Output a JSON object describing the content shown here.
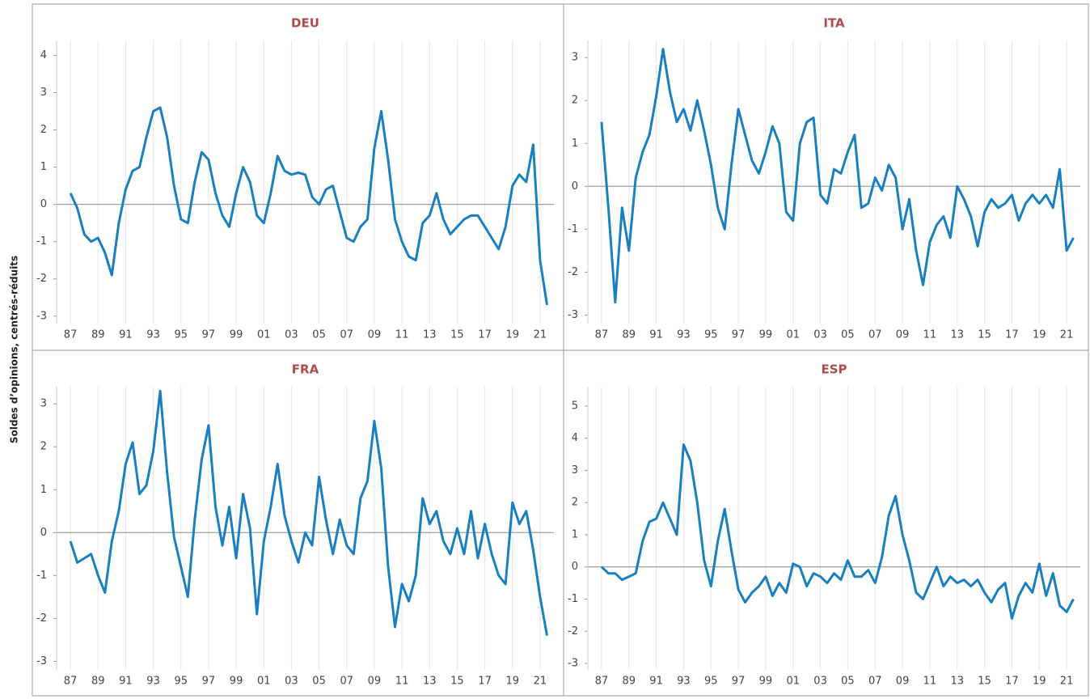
{
  "ylabel": "Soldes d’opinions, centrés-réduits",
  "chart_data": [
    {
      "type": "line",
      "title": "DEU",
      "color": "#1a7fc1",
      "grid": true,
      "x": [
        1987,
        1987.5,
        1988,
        1988.5,
        1989,
        1989.5,
        1990,
        1990.5,
        1991,
        1991.5,
        1992,
        1992.5,
        1993,
        1993.5,
        1994,
        1994.5,
        1995,
        1995.5,
        1996,
        1996.5,
        1997,
        1997.5,
        1998,
        1998.5,
        1999,
        1999.5,
        2000,
        2000.5,
        2001,
        2001.5,
        2002,
        2002.5,
        2003,
        2003.5,
        2004,
        2004.5,
        2005,
        2005.5,
        2006,
        2006.5,
        2007,
        2007.5,
        2008,
        2008.5,
        2009,
        2009.5,
        2010,
        2010.5,
        2011,
        2011.5,
        2012,
        2012.5,
        2013,
        2013.5,
        2014,
        2014.5,
        2015,
        2015.5,
        2016,
        2016.5,
        2017,
        2017.5,
        2018,
        2018.5,
        2019,
        2019.5,
        2020,
        2020.5,
        2021,
        2021.5
      ],
      "values": [
        0.3,
        -0.1,
        -0.8,
        -1.0,
        -0.9,
        -1.3,
        -1.9,
        -0.5,
        0.4,
        0.9,
        1.0,
        1.8,
        2.5,
        2.6,
        1.8,
        0.5,
        -0.4,
        -0.5,
        0.6,
        1.4,
        1.2,
        0.3,
        -0.3,
        -0.6,
        0.3,
        1.0,
        0.6,
        -0.3,
        -0.5,
        0.3,
        1.3,
        0.9,
        0.8,
        0.85,
        0.8,
        0.2,
        0.0,
        0.4,
        0.5,
        -0.2,
        -0.9,
        -1.0,
        -0.6,
        -0.4,
        1.5,
        2.5,
        1.2,
        -0.4,
        -1.0,
        -1.4,
        -1.5,
        -0.5,
        -0.3,
        0.3,
        -0.4,
        -0.8,
        -0.6,
        -0.4,
        -0.3,
        -0.3,
        -0.6,
        -0.9,
        -1.2,
        -0.6,
        0.5,
        0.8,
        0.6,
        1.6,
        -1.5,
        -2.7
      ],
      "xlim": [
        1986,
        2022
      ],
      "xticks": [
        {
          "value": 1987,
          "label": "87"
        },
        {
          "value": 1989,
          "label": "89"
        },
        {
          "value": 1991,
          "label": "91"
        },
        {
          "value": 1993,
          "label": "93"
        },
        {
          "value": 1995,
          "label": "95"
        },
        {
          "value": 1997,
          "label": "97"
        },
        {
          "value": 1999,
          "label": "99"
        },
        {
          "value": 2001,
          "label": "01"
        },
        {
          "value": 2003,
          "label": "03"
        },
        {
          "value": 2005,
          "label": "05"
        },
        {
          "value": 2007,
          "label": "07"
        },
        {
          "value": 2009,
          "label": "09"
        },
        {
          "value": 2011,
          "label": "11"
        },
        {
          "value": 2013,
          "label": "13"
        },
        {
          "value": 2015,
          "label": "15"
        },
        {
          "value": 2017,
          "label": "17"
        },
        {
          "value": 2019,
          "label": "19"
        },
        {
          "value": 2021,
          "label": "21"
        }
      ],
      "ylim": [
        -3.2,
        4.4
      ],
      "yticks": [
        -3,
        -2,
        -1,
        0,
        1,
        2,
        3,
        4
      ]
    },
    {
      "type": "line",
      "title": "ITA",
      "color": "#1a7fc1",
      "grid": true,
      "x": [
        1987,
        1987.5,
        1988,
        1988.5,
        1989,
        1989.5,
        1990,
        1990.5,
        1991,
        1991.5,
        1992,
        1992.5,
        1993,
        1993.5,
        1994,
        1994.5,
        1995,
        1995.5,
        1996,
        1996.5,
        1997,
        1997.5,
        1998,
        1998.5,
        1999,
        1999.5,
        2000,
        2000.5,
        2001,
        2001.5,
        2002,
        2002.5,
        2003,
        2003.5,
        2004,
        2004.5,
        2005,
        2005.5,
        2006,
        2006.5,
        2007,
        2007.5,
        2008,
        2008.5,
        2009,
        2009.5,
        2010,
        2010.5,
        2011,
        2011.5,
        2012,
        2012.5,
        2013,
        2013.5,
        2014,
        2014.5,
        2015,
        2015.5,
        2016,
        2016.5,
        2017,
        2017.5,
        2018,
        2018.5,
        2019,
        2019.5,
        2020,
        2020.5,
        2021,
        2021.5
      ],
      "values": [
        1.5,
        -0.5,
        -2.7,
        -0.5,
        -1.5,
        0.2,
        0.8,
        1.2,
        2.1,
        3.2,
        2.2,
        1.5,
        1.8,
        1.3,
        2.0,
        1.3,
        0.5,
        -0.5,
        -1.0,
        0.5,
        1.8,
        1.2,
        0.6,
        0.3,
        0.8,
        1.4,
        1.0,
        -0.6,
        -0.8,
        1.0,
        1.5,
        1.6,
        -0.2,
        -0.4,
        0.4,
        0.3,
        0.8,
        1.2,
        -0.5,
        -0.4,
        0.2,
        -0.1,
        0.5,
        0.2,
        -1.0,
        -0.3,
        -1.5,
        -2.3,
        -1.3,
        -0.9,
        -0.7,
        -1.2,
        0.0,
        -0.3,
        -0.7,
        -1.4,
        -0.6,
        -0.3,
        -0.5,
        -0.4,
        -0.2,
        -0.8,
        -0.4,
        -0.2,
        -0.4,
        -0.2,
        -0.5,
        0.4,
        -1.5,
        -1.2
      ],
      "xlim": [
        1986,
        2022
      ],
      "xticks": [
        {
          "value": 1987,
          "label": "87"
        },
        {
          "value": 1989,
          "label": "89"
        },
        {
          "value": 1991,
          "label": "91"
        },
        {
          "value": 1993,
          "label": "93"
        },
        {
          "value": 1995,
          "label": "95"
        },
        {
          "value": 1997,
          "label": "97"
        },
        {
          "value": 1999,
          "label": "99"
        },
        {
          "value": 2001,
          "label": "01"
        },
        {
          "value": 2003,
          "label": "03"
        },
        {
          "value": 2005,
          "label": "05"
        },
        {
          "value": 2007,
          "label": "07"
        },
        {
          "value": 2009,
          "label": "09"
        },
        {
          "value": 2011,
          "label": "11"
        },
        {
          "value": 2013,
          "label": "13"
        },
        {
          "value": 2015,
          "label": "15"
        },
        {
          "value": 2017,
          "label": "17"
        },
        {
          "value": 2019,
          "label": "19"
        },
        {
          "value": 2021,
          "label": "21"
        }
      ],
      "ylim": [
        -3.2,
        3.4
      ],
      "yticks": [
        -3,
        -2,
        -1,
        0,
        1,
        2,
        3
      ]
    },
    {
      "type": "line",
      "title": "FRA",
      "color": "#1a7fc1",
      "grid": true,
      "x": [
        1987,
        1987.5,
        1988,
        1988.5,
        1989,
        1989.5,
        1990,
        1990.5,
        1991,
        1991.5,
        1992,
        1992.5,
        1993,
        1993.5,
        1994,
        1994.5,
        1995,
        1995.5,
        1996,
        1996.5,
        1997,
        1997.5,
        1998,
        1998.5,
        1999,
        1999.5,
        2000,
        2000.5,
        2001,
        2001.5,
        2002,
        2002.5,
        2003,
        2003.5,
        2004,
        2004.5,
        2005,
        2005.5,
        2006,
        2006.5,
        2007,
        2007.5,
        2008,
        2008.5,
        2009,
        2009.5,
        2010,
        2010.5,
        2011,
        2011.5,
        2012,
        2012.5,
        2013,
        2013.5,
        2014,
        2014.5,
        2015,
        2015.5,
        2016,
        2016.5,
        2017,
        2017.5,
        2018,
        2018.5,
        2019,
        2019.5,
        2020,
        2020.5,
        2021,
        2021.5
      ],
      "values": [
        -0.2,
        -0.7,
        -0.6,
        -0.5,
        -1.0,
        -1.4,
        -0.2,
        0.5,
        1.6,
        2.1,
        0.9,
        1.1,
        1.9,
        3.3,
        1.4,
        -0.1,
        -0.8,
        -1.5,
        0.3,
        1.7,
        2.5,
        0.6,
        -0.3,
        0.6,
        -0.6,
        0.9,
        0.1,
        -1.9,
        -0.2,
        0.6,
        1.6,
        0.4,
        -0.2,
        -0.7,
        0.0,
        -0.3,
        1.3,
        0.3,
        -0.5,
        0.3,
        -0.3,
        -0.5,
        0.8,
        1.2,
        2.6,
        1.5,
        -0.8,
        -2.2,
        -1.2,
        -1.6,
        -1.0,
        0.8,
        0.2,
        0.5,
        -0.2,
        -0.5,
        0.1,
        -0.5,
        0.5,
        -0.6,
        0.2,
        -0.5,
        -1.0,
        -1.2,
        0.7,
        0.2,
        0.5,
        -0.4,
        -1.5,
        -2.4
      ],
      "xlim": [
        1986,
        2022
      ],
      "xticks": [
        {
          "value": 1987,
          "label": "87"
        },
        {
          "value": 1989,
          "label": "89"
        },
        {
          "value": 1991,
          "label": "91"
        },
        {
          "value": 1993,
          "label": "93"
        },
        {
          "value": 1995,
          "label": "95"
        },
        {
          "value": 1997,
          "label": "97"
        },
        {
          "value": 1999,
          "label": "99"
        },
        {
          "value": 2001,
          "label": "01"
        },
        {
          "value": 2003,
          "label": "03"
        },
        {
          "value": 2005,
          "label": "05"
        },
        {
          "value": 2007,
          "label": "07"
        },
        {
          "value": 2009,
          "label": "09"
        },
        {
          "value": 2011,
          "label": "11"
        },
        {
          "value": 2013,
          "label": "13"
        },
        {
          "value": 2015,
          "label": "15"
        },
        {
          "value": 2017,
          "label": "17"
        },
        {
          "value": 2019,
          "label": "19"
        },
        {
          "value": 2021,
          "label": "21"
        }
      ],
      "ylim": [
        -3.2,
        3.4
      ],
      "yticks": [
        -3,
        -2,
        -1,
        0,
        1,
        2,
        3
      ]
    },
    {
      "type": "line",
      "title": "ESP",
      "color": "#1a7fc1",
      "grid": true,
      "x": [
        1987,
        1987.5,
        1988,
        1988.5,
        1989,
        1989.5,
        1990,
        1990.5,
        1991,
        1991.5,
        1992,
        1992.5,
        1993,
        1993.5,
        1994,
        1994.5,
        1995,
        1995.5,
        1996,
        1996.5,
        1997,
        1997.5,
        1998,
        1998.5,
        1999,
        1999.5,
        2000,
        2000.5,
        2001,
        2001.5,
        2002,
        2002.5,
        2003,
        2003.5,
        2004,
        2004.5,
        2005,
        2005.5,
        2006,
        2006.5,
        2007,
        2007.5,
        2008,
        2008.5,
        2009,
        2009.5,
        2010,
        2010.5,
        2011,
        2011.5,
        2012,
        2012.5,
        2013,
        2013.5,
        2014,
        2014.5,
        2015,
        2015.5,
        2016,
        2016.5,
        2017,
        2017.5,
        2018,
        2018.5,
        2019,
        2019.5,
        2020,
        2020.5,
        2021,
        2021.5
      ],
      "values": [
        0.0,
        -0.2,
        -0.2,
        -0.4,
        -0.3,
        -0.2,
        0.8,
        1.4,
        1.5,
        2.0,
        1.5,
        1.0,
        3.8,
        3.3,
        2.0,
        0.2,
        -0.6,
        0.8,
        1.8,
        0.5,
        -0.7,
        -1.1,
        -0.8,
        -0.6,
        -0.3,
        -0.9,
        -0.5,
        -0.8,
        0.1,
        0.0,
        -0.6,
        -0.2,
        -0.3,
        -0.5,
        -0.2,
        -0.4,
        0.2,
        -0.3,
        -0.3,
        -0.1,
        -0.5,
        0.3,
        1.6,
        2.2,
        1.0,
        0.2,
        -0.8,
        -1.0,
        -0.5,
        0.0,
        -0.6,
        -0.3,
        -0.5,
        -0.4,
        -0.6,
        -0.4,
        -0.8,
        -1.1,
        -0.7,
        -0.5,
        -1.6,
        -0.9,
        -0.5,
        -0.8,
        0.1,
        -0.9,
        -0.2,
        -1.2,
        -1.4,
        -1.0
      ],
      "xlim": [
        1986,
        2022
      ],
      "xticks": [
        {
          "value": 1987,
          "label": "87"
        },
        {
          "value": 1989,
          "label": "89"
        },
        {
          "value": 1991,
          "label": "91"
        },
        {
          "value": 1993,
          "label": "93"
        },
        {
          "value": 1995,
          "label": "95"
        },
        {
          "value": 1997,
          "label": "97"
        },
        {
          "value": 1999,
          "label": "99"
        },
        {
          "value": 2001,
          "label": "01"
        },
        {
          "value": 2003,
          "label": "03"
        },
        {
          "value": 2005,
          "label": "05"
        },
        {
          "value": 2007,
          "label": "07"
        },
        {
          "value": 2009,
          "label": "09"
        },
        {
          "value": 2011,
          "label": "11"
        },
        {
          "value": 2013,
          "label": "13"
        },
        {
          "value": 2015,
          "label": "15"
        },
        {
          "value": 2017,
          "label": "17"
        },
        {
          "value": 2019,
          "label": "19"
        },
        {
          "value": 2021,
          "label": "21"
        }
      ],
      "ylim": [
        -3.2,
        5.6
      ],
      "yticks": [
        -3,
        -2,
        -1,
        0,
        1,
        2,
        3,
        4,
        5
      ]
    }
  ]
}
